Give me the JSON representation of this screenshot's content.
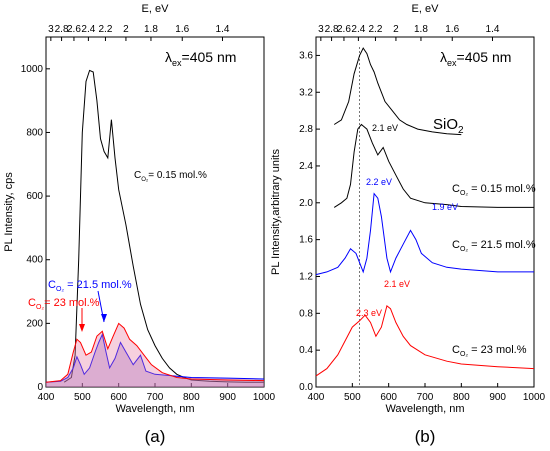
{
  "figure": {
    "panel_a_label": "(a)",
    "panel_b_label": "(b)"
  },
  "chart_data": [
    {
      "type": "line",
      "panel": "(a)",
      "xlabel": "Wavelength, nm",
      "ylabel": "PL Intensity, cps",
      "top_axis_label": "E, eV",
      "xlim": [
        400,
        1000
      ],
      "ylim": [
        0,
        1100
      ],
      "x_ticks": [
        400,
        500,
        600,
        700,
        800,
        900,
        1000
      ],
      "y_ticks": [
        0,
        200,
        400,
        600,
        800,
        1000
      ],
      "top_ticks": [
        "3",
        "2.8",
        "2.6",
        "2.4",
        "2.2",
        "2",
        "1.8",
        "1.6",
        "1.4"
      ],
      "top_tick_ev": [
        3.0,
        2.8,
        2.6,
        2.4,
        2.2,
        2.0,
        1.8,
        1.6,
        1.4
      ],
      "excitation_label": "λex=405 nm",
      "series": [
        {
          "name": "CO2 = 0.15 mol.%",
          "color": "#000000",
          "points": [
            [
              450,
              15
            ],
            [
              470,
              30
            ],
            [
              480,
              100
            ],
            [
              490,
              400
            ],
            [
              500,
              800
            ],
            [
              510,
              960
            ],
            [
              520,
              995
            ],
            [
              530,
              990
            ],
            [
              540,
              900
            ],
            [
              550,
              780
            ],
            [
              560,
              740
            ],
            [
              570,
              720
            ],
            [
              580,
              840
            ],
            [
              590,
              720
            ],
            [
              600,
              620
            ],
            [
              620,
              510
            ],
            [
              640,
              380
            ],
            [
              660,
              260
            ],
            [
              680,
              180
            ],
            [
              700,
              130
            ],
            [
              720,
              90
            ],
            [
              740,
              60
            ],
            [
              760,
              40
            ],
            [
              780,
              30
            ],
            [
              800,
              22
            ],
            [
              850,
              18
            ],
            [
              900,
              16
            ],
            [
              950,
              15
            ],
            [
              1000,
              15
            ]
          ]
        },
        {
          "name": "CO2 = 21.5 mol.%",
          "color": "#0000ff",
          "points": [
            [
              400,
              15
            ],
            [
              440,
              18
            ],
            [
              460,
              30
            ],
            [
              475,
              60
            ],
            [
              485,
              95
            ],
            [
              495,
              70
            ],
            [
              505,
              40
            ],
            [
              520,
              60
            ],
            [
              535,
              110
            ],
            [
              545,
              140
            ],
            [
              555,
              165
            ],
            [
              565,
              110
            ],
            [
              575,
              60
            ],
            [
              590,
              90
            ],
            [
              605,
              140
            ],
            [
              620,
              110
            ],
            [
              640,
              70
            ],
            [
              660,
              100
            ],
            [
              675,
              50
            ],
            [
              700,
              40
            ],
            [
              750,
              35
            ],
            [
              800,
              30
            ],
            [
              900,
              28
            ],
            [
              1000,
              25
            ]
          ]
        },
        {
          "name": "CO2 = 23 mol.%",
          "color": "#ff0000",
          "points": [
            [
              400,
              15
            ],
            [
              440,
              20
            ],
            [
              460,
              40
            ],
            [
              475,
              110
            ],
            [
              485,
              150
            ],
            [
              495,
              140
            ],
            [
              510,
              100
            ],
            [
              525,
              110
            ],
            [
              540,
              160
            ],
            [
              555,
              175
            ],
            [
              570,
              120
            ],
            [
              585,
              160
            ],
            [
              600,
              200
            ],
            [
              615,
              185
            ],
            [
              630,
              150
            ],
            [
              650,
              130
            ],
            [
              670,
              100
            ],
            [
              690,
              70
            ],
            [
              720,
              45
            ],
            [
              760,
              30
            ],
            [
              800,
              25
            ],
            [
              900,
              22
            ],
            [
              1000,
              20
            ]
          ]
        }
      ],
      "annotations": [
        {
          "text": "CO2= 0.15 mol.%",
          "color": "#000000"
        },
        {
          "text": "CO2 = 21.5 mol.%",
          "color": "#0000ff"
        },
        {
          "text": "CO2= 23 mol.%",
          "color": "#ff0000"
        }
      ]
    },
    {
      "type": "line",
      "panel": "(b)",
      "xlabel": "Wavelength, nm",
      "ylabel": "PL Intensity,arbitrary units",
      "top_axis_label": "E, eV",
      "xlim": [
        400,
        1000
      ],
      "ylim": [
        0,
        3.8
      ],
      "x_ticks": [
        400,
        500,
        600,
        700,
        800,
        900,
        1000
      ],
      "y_ticks": [
        0.0,
        0.4,
        0.8,
        1.2,
        1.6,
        2.0,
        2.4,
        2.8,
        3.2,
        3.6
      ],
      "y_tick_labels": [
        "0.0",
        "0.4",
        "0.8",
        "1.2",
        "1.6",
        "2.0",
        "2.4",
        "2.8",
        "3.2",
        "3.6"
      ],
      "top_ticks": [
        "3",
        "2.8",
        "2.6",
        "2.4",
        "2.2",
        "2",
        "1.8",
        "1.6",
        "1.4"
      ],
      "top_tick_ev": [
        3.0,
        2.8,
        2.6,
        2.4,
        2.2,
        2.0,
        1.8,
        1.6,
        1.4
      ],
      "excitation_label": "λex=405 nm",
      "dotted_line_x": 520,
      "series": [
        {
          "name": "SiO2",
          "color": "#000000",
          "points": [
            [
              450,
              2.85
            ],
            [
              470,
              2.9
            ],
            [
              490,
              3.1
            ],
            [
              505,
              3.4
            ],
            [
              520,
              3.6
            ],
            [
              530,
              3.68
            ],
            [
              540,
              3.62
            ],
            [
              550,
              3.5
            ],
            [
              560,
              3.42
            ],
            [
              570,
              3.3
            ],
            [
              590,
              3.1
            ],
            [
              610,
              3.0
            ],
            [
              630,
              2.9
            ],
            [
              650,
              2.85
            ],
            [
              680,
              2.8
            ],
            [
              720,
              2.77
            ],
            [
              760,
              2.75
            ],
            [
              800,
              2.74
            ]
          ]
        },
        {
          "name": "CO2 = 0.15 mol.%",
          "color": "#000000",
          "points": [
            [
              450,
              1.95
            ],
            [
              470,
              2.0
            ],
            [
              485,
              2.05
            ],
            [
              495,
              2.2
            ],
            [
              505,
              2.55
            ],
            [
              515,
              2.8
            ],
            [
              525,
              2.85
            ],
            [
              540,
              2.8
            ],
            [
              555,
              2.65
            ],
            [
              570,
              2.52
            ],
            [
              585,
              2.6
            ],
            [
              600,
              2.45
            ],
            [
              620,
              2.3
            ],
            [
              640,
              2.15
            ],
            [
              660,
              2.05
            ],
            [
              700,
              2.0
            ],
            [
              760,
              1.98
            ],
            [
              800,
              1.96
            ],
            [
              900,
              1.95
            ],
            [
              1000,
              1.95
            ]
          ]
        },
        {
          "name": "CO2 = 21.5 mol.%",
          "color": "#0000ff",
          "points": [
            [
              400,
              1.22
            ],
            [
              430,
              1.25
            ],
            [
              460,
              1.3
            ],
            [
              480,
              1.4
            ],
            [
              495,
              1.5
            ],
            [
              510,
              1.45
            ],
            [
              520,
              1.35
            ],
            [
              530,
              1.25
            ],
            [
              540,
              1.4
            ],
            [
              550,
              1.7
            ],
            [
              560,
              2.1
            ],
            [
              570,
              2.05
            ],
            [
              580,
              1.85
            ],
            [
              595,
              1.4
            ],
            [
              605,
              1.25
            ],
            [
              620,
              1.4
            ],
            [
              640,
              1.55
            ],
            [
              660,
              1.7
            ],
            [
              675,
              1.6
            ],
            [
              690,
              1.45
            ],
            [
              720,
              1.35
            ],
            [
              760,
              1.3
            ],
            [
              800,
              1.28
            ],
            [
              900,
              1.25
            ],
            [
              1000,
              1.25
            ]
          ]
        },
        {
          "name": "CO2 = 23 mol.%",
          "color": "#ff0000",
          "points": [
            [
              400,
              0.12
            ],
            [
              430,
              0.2
            ],
            [
              460,
              0.35
            ],
            [
              480,
              0.5
            ],
            [
              500,
              0.65
            ],
            [
              520,
              0.72
            ],
            [
              535,
              0.78
            ],
            [
              550,
              0.7
            ],
            [
              565,
              0.55
            ],
            [
              580,
              0.65
            ],
            [
              595,
              0.88
            ],
            [
              605,
              0.85
            ],
            [
              620,
              0.7
            ],
            [
              640,
              0.55
            ],
            [
              660,
              0.45
            ],
            [
              700,
              0.35
            ],
            [
              760,
              0.28
            ],
            [
              800,
              0.25
            ],
            [
              900,
              0.22
            ],
            [
              1000,
              0.2
            ]
          ]
        }
      ],
      "annotations": [
        {
          "text": "SiO2",
          "color": "#000000"
        },
        {
          "text": "2.1 eV",
          "color": "#000000"
        },
        {
          "text": "CO2 = 0.15 mol.%",
          "color": "#000000"
        },
        {
          "text": "2.2 eV",
          "color": "#0000ff"
        },
        {
          "text": "1.9 eV",
          "color": "#0000ff"
        },
        {
          "text": "CO2 = 21.5 mol.%",
          "color": "#000000"
        },
        {
          "text": "2.1 eV",
          "color": "#ff0000"
        },
        {
          "text": "2.3 eV",
          "color": "#ff0000"
        },
        {
          "text": "CO2 = 23 mol.%",
          "color": "#000000"
        }
      ]
    }
  ]
}
